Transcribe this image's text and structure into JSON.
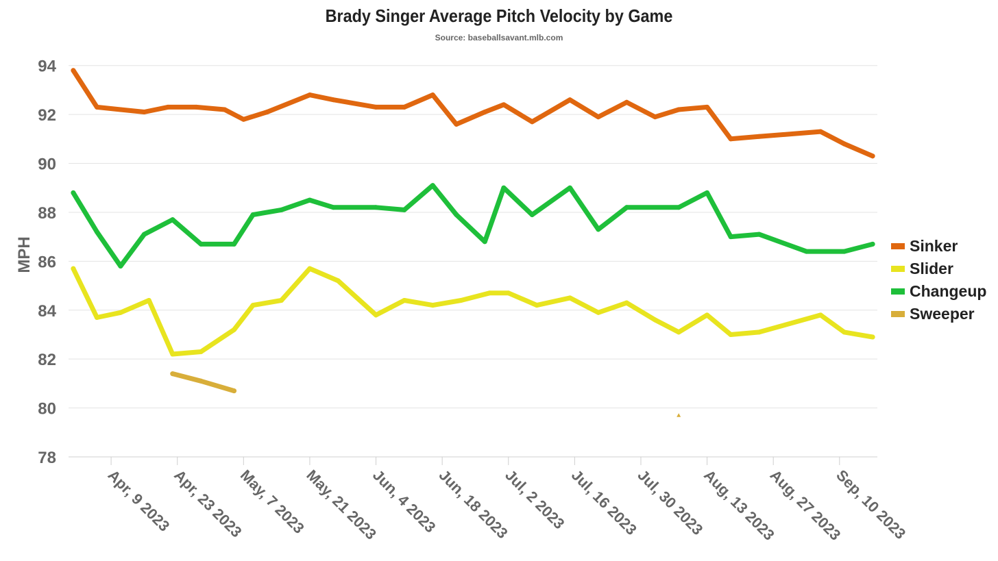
{
  "chart_data": {
    "type": "line",
    "title": "Brady Singer Average Pitch Velocity by Game",
    "subtitle": "Source: baseballsavant.mlb.com",
    "xlabel": "",
    "ylabel": "MPH",
    "ylim": [
      78,
      95
    ],
    "yticks": [
      78,
      80,
      82,
      84,
      86,
      88,
      90,
      92,
      94
    ],
    "x_ticks": [
      {
        "date": "2023-04-09",
        "label": "Apr, 9 2023"
      },
      {
        "date": "2023-04-23",
        "label": "Apr, 23 2023"
      },
      {
        "date": "2023-05-07",
        "label": "May, 7 2023"
      },
      {
        "date": "2023-05-21",
        "label": "May, 21 2023"
      },
      {
        "date": "2023-06-04",
        "label": "Jun, 4 2023"
      },
      {
        "date": "2023-06-18",
        "label": "Jun, 18 2023"
      },
      {
        "date": "2023-07-02",
        "label": "Jul, 2 2023"
      },
      {
        "date": "2023-07-16",
        "label": "Jul, 16 2023"
      },
      {
        "date": "2023-07-30",
        "label": "Jul, 30 2023"
      },
      {
        "date": "2023-08-13",
        "label": "Aug, 13 2023"
      },
      {
        "date": "2023-08-27",
        "label": "Aug, 27 2023"
      },
      {
        "date": "2023-09-10",
        "label": "Sep, 10 2023"
      }
    ],
    "xlim": [
      "2023-03-31",
      "2023-09-18"
    ],
    "grid": true,
    "legend_position": "right",
    "series": [
      {
        "name": "Sinker",
        "color": "#E0670F",
        "points": [
          [
            "2023-04-01",
            93.8
          ],
          [
            "2023-04-06",
            92.3
          ],
          [
            "2023-04-11",
            92.2
          ],
          [
            "2023-04-16",
            92.1
          ],
          [
            "2023-04-21",
            92.3
          ],
          [
            "2023-04-27",
            92.3
          ],
          [
            "2023-05-03",
            92.2
          ],
          [
            "2023-05-07",
            91.8
          ],
          [
            "2023-05-12",
            92.1
          ],
          [
            "2023-05-21",
            92.8
          ],
          [
            "2023-05-26",
            92.6
          ],
          [
            "2023-06-04",
            92.3
          ],
          [
            "2023-06-10",
            92.3
          ],
          [
            "2023-06-16",
            92.8
          ],
          [
            "2023-06-21",
            91.6
          ],
          [
            "2023-06-27",
            92.1
          ],
          [
            "2023-07-01",
            92.4
          ],
          [
            "2023-07-07",
            91.7
          ],
          [
            "2023-07-15",
            92.6
          ],
          [
            "2023-07-21",
            91.9
          ],
          [
            "2023-07-27",
            92.5
          ],
          [
            "2023-08-02",
            91.9
          ],
          [
            "2023-08-07",
            92.2
          ],
          [
            "2023-08-13",
            92.3
          ],
          [
            "2023-08-18",
            91.0
          ],
          [
            "2023-08-24",
            91.1
          ],
          [
            "2023-09-06",
            91.3
          ],
          [
            "2023-09-11",
            90.8
          ],
          [
            "2023-09-17",
            90.3
          ]
        ]
      },
      {
        "name": "Slider",
        "color": "#E8E41F",
        "points": [
          [
            "2023-04-01",
            85.7
          ],
          [
            "2023-04-06",
            83.7
          ],
          [
            "2023-04-11",
            83.9
          ],
          [
            "2023-04-17",
            84.4
          ],
          [
            "2023-04-22",
            82.2
          ],
          [
            "2023-04-28",
            82.3
          ],
          [
            "2023-05-05",
            83.2
          ],
          [
            "2023-05-09",
            84.2
          ],
          [
            "2023-05-15",
            84.4
          ],
          [
            "2023-05-21",
            85.7
          ],
          [
            "2023-05-27",
            85.2
          ],
          [
            "2023-06-04",
            83.8
          ],
          [
            "2023-06-10",
            84.4
          ],
          [
            "2023-06-16",
            84.2
          ],
          [
            "2023-06-22",
            84.4
          ],
          [
            "2023-06-28",
            84.7
          ],
          [
            "2023-07-02",
            84.7
          ],
          [
            "2023-07-08",
            84.2
          ],
          [
            "2023-07-15",
            84.5
          ],
          [
            "2023-07-21",
            83.9
          ],
          [
            "2023-07-27",
            84.3
          ],
          [
            "2023-08-02",
            83.6
          ],
          [
            "2023-08-07",
            83.1
          ],
          [
            "2023-08-13",
            83.8
          ],
          [
            "2023-08-18",
            83.0
          ],
          [
            "2023-08-24",
            83.1
          ],
          [
            "2023-09-06",
            83.8
          ],
          [
            "2023-09-11",
            83.1
          ],
          [
            "2023-09-17",
            82.9
          ]
        ]
      },
      {
        "name": "Changeup",
        "color": "#1EBF3A",
        "points": [
          [
            "2023-04-01",
            88.8
          ],
          [
            "2023-04-06",
            87.2
          ],
          [
            "2023-04-11",
            85.8
          ],
          [
            "2023-04-16",
            87.1
          ],
          [
            "2023-04-22",
            87.7
          ],
          [
            "2023-04-28",
            86.7
          ],
          [
            "2023-05-05",
            86.7
          ],
          [
            "2023-05-09",
            87.9
          ],
          [
            "2023-05-15",
            88.1
          ],
          [
            "2023-05-21",
            88.5
          ],
          [
            "2023-05-26",
            88.2
          ],
          [
            "2023-06-04",
            88.2
          ],
          [
            "2023-06-10",
            88.1
          ],
          [
            "2023-06-16",
            89.1
          ],
          [
            "2023-06-21",
            87.9
          ],
          [
            "2023-06-27",
            86.8
          ],
          [
            "2023-07-01",
            89.0
          ],
          [
            "2023-07-07",
            87.9
          ],
          [
            "2023-07-15",
            89.0
          ],
          [
            "2023-07-21",
            87.3
          ],
          [
            "2023-07-27",
            88.2
          ],
          [
            "2023-08-07",
            88.2
          ],
          [
            "2023-08-13",
            88.8
          ],
          [
            "2023-08-18",
            87.0
          ],
          [
            "2023-08-24",
            87.1
          ],
          [
            "2023-09-03",
            86.4
          ],
          [
            "2023-09-11",
            86.4
          ],
          [
            "2023-09-17",
            86.7
          ]
        ]
      },
      {
        "name": "Sweeper",
        "color": "#D8AE3A",
        "points": [
          [
            "2023-04-22",
            81.4
          ],
          [
            "2023-04-28",
            81.1
          ],
          [
            "2023-05-05",
            80.7
          ]
        ],
        "marker_points": [
          [
            "2023-08-07",
            79.7
          ]
        ]
      }
    ]
  }
}
